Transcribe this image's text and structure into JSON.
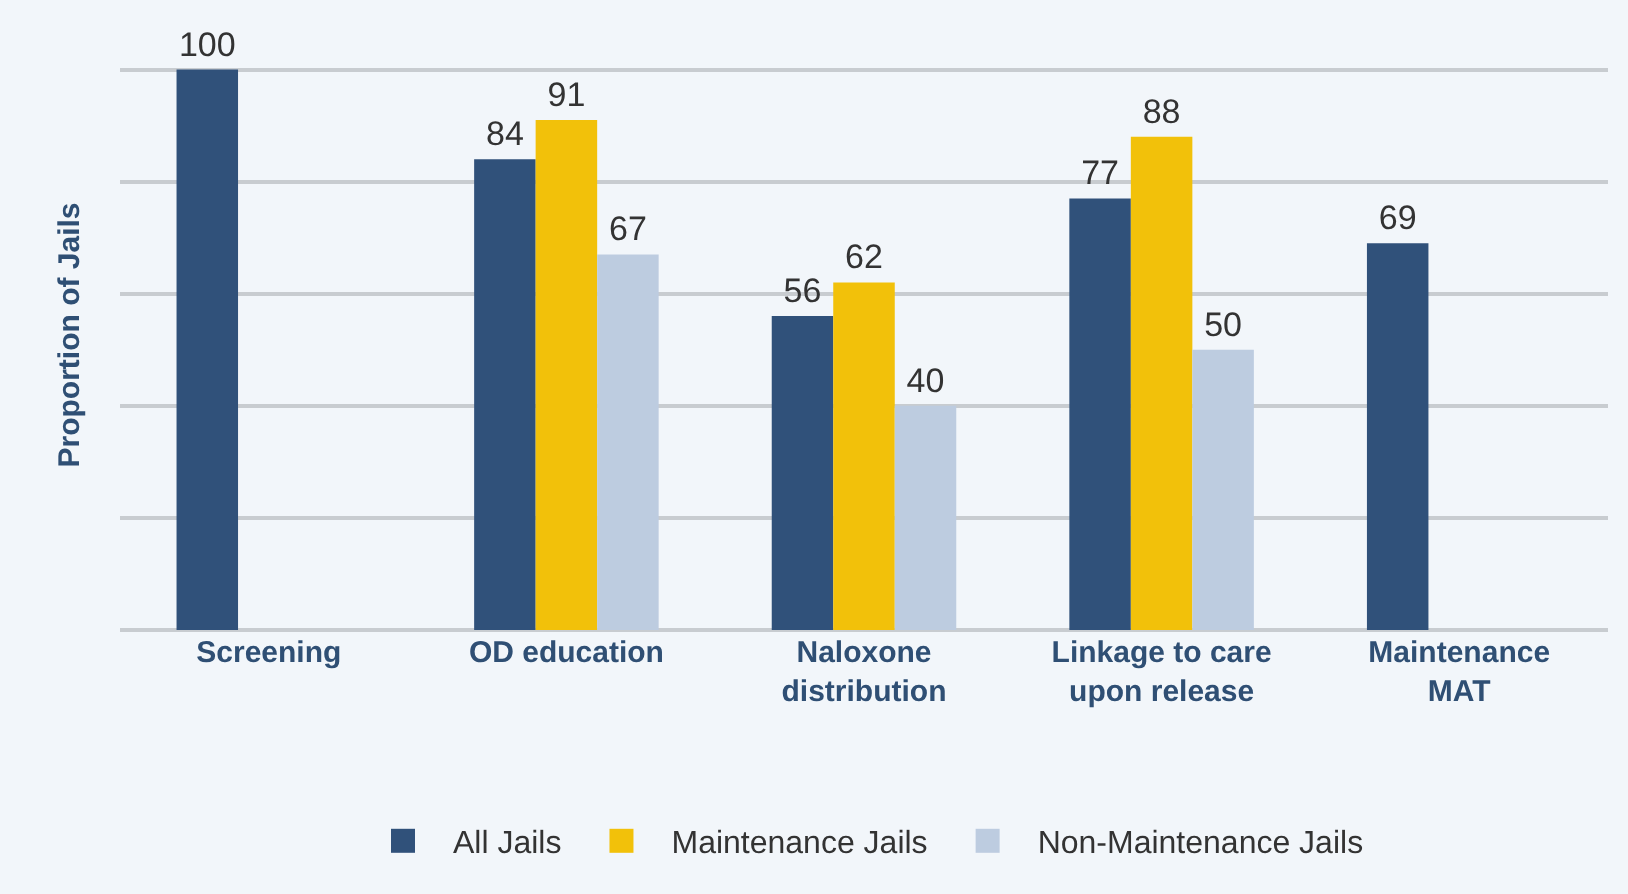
{
  "chart_data": {
    "type": "bar",
    "ylabel": "Proportion of Jails",
    "categories": [
      "Screening",
      "OD education",
      "Naloxone\ndistribution",
      "Linkage to care\nupon release",
      "Maintenance\nMAT"
    ],
    "series": [
      {
        "name": "All Jails",
        "color": "#30517a",
        "values": [
          100,
          84,
          56,
          77,
          69
        ]
      },
      {
        "name": "Maintenance Jails",
        "color": "#f2c10a",
        "values": [
          null,
          91,
          62,
          88,
          null
        ]
      },
      {
        "name": "Non-Maintenance Jails",
        "color": "#bdcce0",
        "values": [
          null,
          67,
          40,
          50,
          null
        ]
      }
    ],
    "grid": "y",
    "legend": "bottom",
    "data_labels": true,
    "tick_labels": "x"
  }
}
